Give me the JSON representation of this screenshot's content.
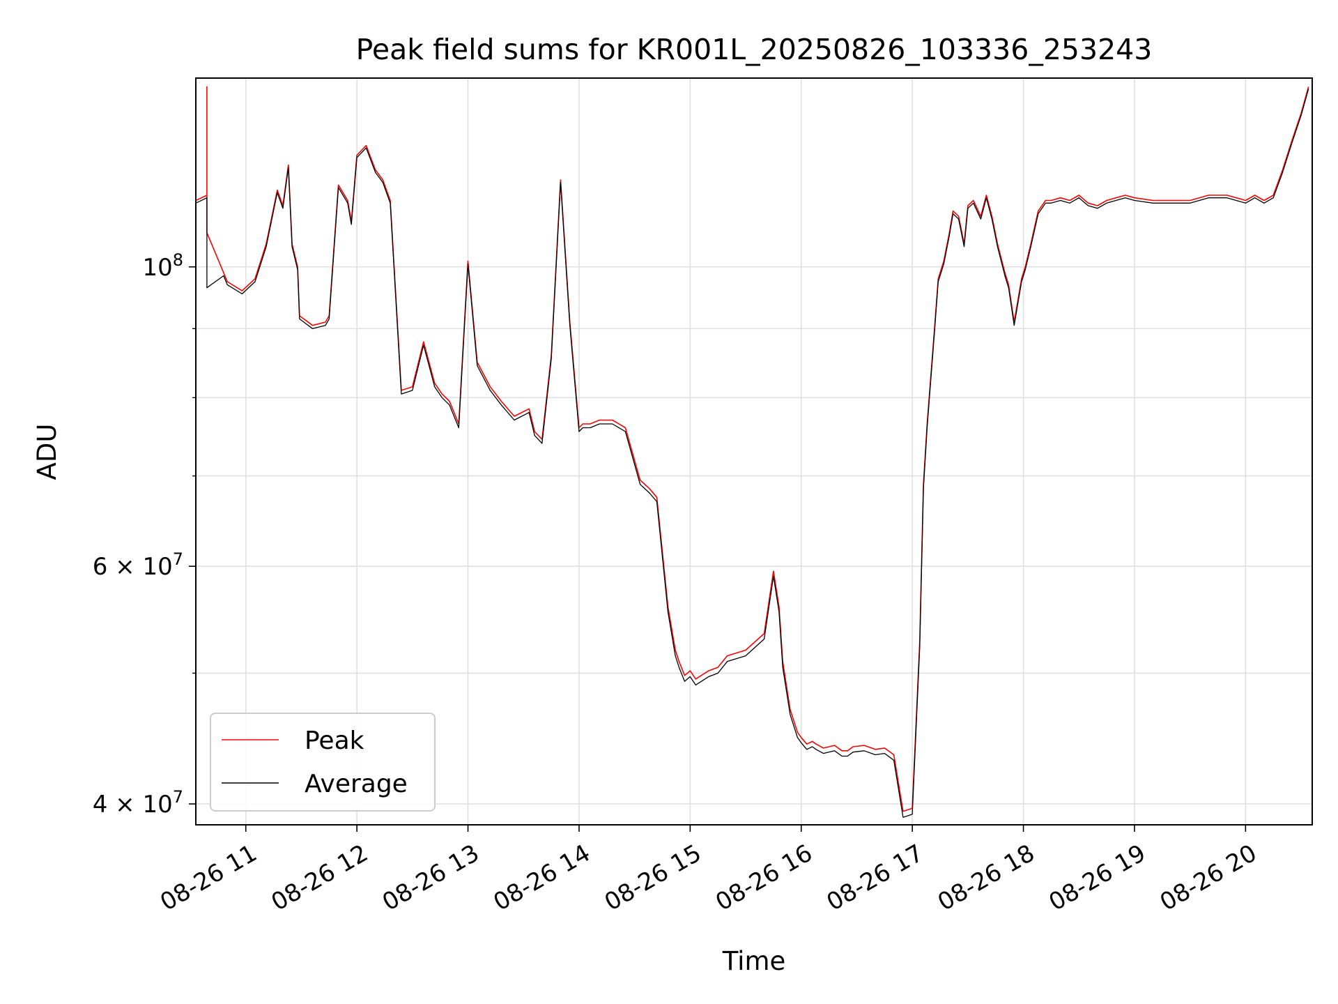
{
  "chart_data": {
    "type": "line",
    "title": "Peak field sums for KR001L_20250826_103336_253243",
    "xlabel": "Time",
    "ylabel": "ADU",
    "yscale": "log",
    "xlim": [
      "2025-08-26 10:33",
      "2025-08-26 20:36"
    ],
    "ylim": [
      38600000,
      138000000
    ],
    "x_ticks": [
      {
        "value": "2025-08-26 11:00",
        "label": "08-26 11"
      },
      {
        "value": "2025-08-26 12:00",
        "label": "08-26 12"
      },
      {
        "value": "2025-08-26 13:00",
        "label": "08-26 13"
      },
      {
        "value": "2025-08-26 14:00",
        "label": "08-26 14"
      },
      {
        "value": "2025-08-26 15:00",
        "label": "08-26 15"
      },
      {
        "value": "2025-08-26 16:00",
        "label": "08-26 16"
      },
      {
        "value": "2025-08-26 17:00",
        "label": "08-26 17"
      },
      {
        "value": "2025-08-26 18:00",
        "label": "08-26 18"
      },
      {
        "value": "2025-08-26 19:00",
        "label": "08-26 19"
      },
      {
        "value": "2025-08-26 20:00",
        "label": "08-26 20"
      }
    ],
    "y_major_ticks": [
      {
        "value": 40000000,
        "mantissa": "4",
        "exponent": "7"
      },
      {
        "value": 60000000,
        "mantissa": "6",
        "exponent": "7"
      },
      {
        "value": 100000000,
        "mantissa": "",
        "exponent": "8"
      }
    ],
    "y_minor_ticks": [
      50000000,
      70000000,
      80000000,
      90000000
    ],
    "grid": true,
    "legend_position": "lower-left",
    "series": [
      {
        "name": "Peak",
        "color": "#ff0000",
        "x": [
          "2025-08-26 10:33",
          "2025-08-26 10:39",
          "2025-08-26 10:39",
          "2025-08-26 10:39",
          "2025-08-26 10:48",
          "2025-08-26 10:50",
          "2025-08-26 10:58",
          "2025-08-26 11:05",
          "2025-08-26 11:11",
          "2025-08-26 11:17",
          "2025-08-26 11:20",
          "2025-08-26 11:23",
          "2025-08-26 11:25",
          "2025-08-26 11:28",
          "2025-08-26 11:29",
          "2025-08-26 11:36",
          "2025-08-26 11:43",
          "2025-08-26 11:45",
          "2025-08-26 11:50",
          "2025-08-26 11:55",
          "2025-08-26 11:57",
          "2025-08-26 12:00",
          "2025-08-26 12:05",
          "2025-08-26 12:10",
          "2025-08-26 12:14",
          "2025-08-26 12:18",
          "2025-08-26 12:24",
          "2025-08-26 12:30",
          "2025-08-26 12:36",
          "2025-08-26 12:42",
          "2025-08-26 12:46",
          "2025-08-26 12:50",
          "2025-08-26 12:55",
          "2025-08-26 13:00",
          "2025-08-26 13:05",
          "2025-08-26 13:12",
          "2025-08-26 13:18",
          "2025-08-26 13:25",
          "2025-08-26 13:33",
          "2025-08-26 13:36",
          "2025-08-26 13:40",
          "2025-08-26 13:45",
          "2025-08-26 13:50",
          "2025-08-26 13:55",
          "2025-08-26 14:00",
          "2025-08-26 14:02",
          "2025-08-26 14:06",
          "2025-08-26 14:11",
          "2025-08-26 14:18",
          "2025-08-26 14:25",
          "2025-08-26 14:33",
          "2025-08-26 14:38",
          "2025-08-26 14:42",
          "2025-08-26 14:48",
          "2025-08-26 14:52",
          "2025-08-26 14:54",
          "2025-08-26 14:57",
          "2025-08-26 15:00",
          "2025-08-26 15:03",
          "2025-08-26 15:06",
          "2025-08-26 15:10",
          "2025-08-26 15:15",
          "2025-08-26 15:20",
          "2025-08-26 15:30",
          "2025-08-26 15:40",
          "2025-08-26 15:45",
          "2025-08-26 15:48",
          "2025-08-26 15:50",
          "2025-08-26 15:54",
          "2025-08-26 15:58",
          "2025-08-26 16:00",
          "2025-08-26 16:03",
          "2025-08-26 16:06",
          "2025-08-26 16:08",
          "2025-08-26 16:12",
          "2025-08-26 16:18",
          "2025-08-26 16:22",
          "2025-08-26 16:25",
          "2025-08-26 16:28",
          "2025-08-26 16:34",
          "2025-08-26 16:40",
          "2025-08-26 16:45",
          "2025-08-26 16:50",
          "2025-08-26 16:55",
          "2025-08-26 17:00",
          "2025-08-26 17:04",
          "2025-08-26 17:06",
          "2025-08-26 17:08",
          "2025-08-26 17:10",
          "2025-08-26 17:12",
          "2025-08-26 17:14",
          "2025-08-26 17:17",
          "2025-08-26 17:20",
          "2025-08-26 17:22",
          "2025-08-26 17:25",
          "2025-08-26 17:28",
          "2025-08-26 17:30",
          "2025-08-26 17:33",
          "2025-08-26 17:37",
          "2025-08-26 17:40",
          "2025-08-26 17:43",
          "2025-08-26 17:46",
          "2025-08-26 17:50",
          "2025-08-26 17:52",
          "2025-08-26 17:55",
          "2025-08-26 17:59",
          "2025-08-26 18:01",
          "2025-08-26 18:04",
          "2025-08-26 18:08",
          "2025-08-26 18:12",
          "2025-08-26 18:15",
          "2025-08-26 18:20",
          "2025-08-26 18:25",
          "2025-08-26 18:30",
          "2025-08-26 18:35",
          "2025-08-26 18:40",
          "2025-08-26 18:45",
          "2025-08-26 18:50",
          "2025-08-26 18:55",
          "2025-08-26 19:00",
          "2025-08-26 19:10",
          "2025-08-26 19:20",
          "2025-08-26 19:30",
          "2025-08-26 19:40",
          "2025-08-26 19:50",
          "2025-08-26 20:00",
          "2025-08-26 20:05",
          "2025-08-26 20:10",
          "2025-08-26 20:15",
          "2025-08-26 20:20",
          "2025-08-26 20:25",
          "2025-08-26 20:30",
          "2025-08-26 20:34"
        ],
        "values": [
          112000000,
          113000000,
          136000000,
          106000000,
          99000000,
          97500000,
          96000000,
          98000000,
          104000000,
          114000000,
          111000000,
          119000000,
          104000000,
          100000000,
          92000000,
          90500000,
          91000000,
          92000000,
          115000000,
          112000000,
          108000000,
          121000000,
          123000000,
          118000000,
          116000000,
          112000000,
          81000000,
          81500000,
          88000000,
          82000000,
          80500000,
          79500000,
          76500000,
          101000000,
          85000000,
          81500000,
          79500000,
          77500000,
          78500000,
          75500000,
          74500000,
          86000000,
          116000000,
          91000000,
          76000000,
          76500000,
          76500000,
          77000000,
          77000000,
          76000000,
          69500000,
          68500000,
          67500000,
          56000000,
          52000000,
          51000000,
          49800000,
          50200000,
          49500000,
          49800000,
          50200000,
          50500000,
          51500000,
          52000000,
          53500000,
          59500000,
          56000000,
          51000000,
          47000000,
          45200000,
          44800000,
          44300000,
          44500000,
          44300000,
          44000000,
          44200000,
          43800000,
          43800000,
          44100000,
          44200000,
          43900000,
          44000000,
          43500000,
          39500000,
          39700000,
          52800000,
          69000000,
          76500000,
          83000000,
          90000000,
          98000000,
          101000000,
          106000000,
          110000000,
          109000000,
          104000000,
          111000000,
          112000000,
          109000000,
          113000000,
          109000000,
          104000000,
          99000000,
          97000000,
          91000000,
          98000000,
          100000000,
          104000000,
          110000000,
          112000000,
          112000000,
          112500000,
          112000000,
          113000000,
          111500000,
          111000000,
          112000000,
          112500000,
          113000000,
          112500000,
          112000000,
          112000000,
          112000000,
          113000000,
          113000000,
          112000000,
          113000000,
          112000000,
          113000000,
          118000000,
          124000000,
          130000000,
          136000000
        ]
      },
      {
        "name": "Average",
        "color": "#000000",
        "x": [
          "2025-08-26 10:33",
          "2025-08-26 10:39",
          "2025-08-26 10:39",
          "2025-08-26 10:39",
          "2025-08-26 10:48",
          "2025-08-26 10:50",
          "2025-08-26 10:58",
          "2025-08-26 11:05",
          "2025-08-26 11:11",
          "2025-08-26 11:17",
          "2025-08-26 11:20",
          "2025-08-26 11:23",
          "2025-08-26 11:25",
          "2025-08-26 11:28",
          "2025-08-26 11:29",
          "2025-08-26 11:36",
          "2025-08-26 11:43",
          "2025-08-26 11:45",
          "2025-08-26 11:50",
          "2025-08-26 11:55",
          "2025-08-26 11:57",
          "2025-08-26 12:00",
          "2025-08-26 12:05",
          "2025-08-26 12:10",
          "2025-08-26 12:14",
          "2025-08-26 12:18",
          "2025-08-26 12:24",
          "2025-08-26 12:30",
          "2025-08-26 12:36",
          "2025-08-26 12:42",
          "2025-08-26 12:46",
          "2025-08-26 12:50",
          "2025-08-26 12:55",
          "2025-08-26 13:00",
          "2025-08-26 13:05",
          "2025-08-26 13:12",
          "2025-08-26 13:18",
          "2025-08-26 13:25",
          "2025-08-26 13:33",
          "2025-08-26 13:36",
          "2025-08-26 13:40",
          "2025-08-26 13:45",
          "2025-08-26 13:50",
          "2025-08-26 13:55",
          "2025-08-26 14:00",
          "2025-08-26 14:02",
          "2025-08-26 14:06",
          "2025-08-26 14:11",
          "2025-08-26 14:18",
          "2025-08-26 14:25",
          "2025-08-26 14:33",
          "2025-08-26 14:38",
          "2025-08-26 14:42",
          "2025-08-26 14:48",
          "2025-08-26 14:52",
          "2025-08-26 14:54",
          "2025-08-26 14:57",
          "2025-08-26 15:00",
          "2025-08-26 15:03",
          "2025-08-26 15:06",
          "2025-08-26 15:10",
          "2025-08-26 15:15",
          "2025-08-26 15:20",
          "2025-08-26 15:30",
          "2025-08-26 15:40",
          "2025-08-26 15:45",
          "2025-08-26 15:48",
          "2025-08-26 15:50",
          "2025-08-26 15:54",
          "2025-08-26 15:58",
          "2025-08-26 16:00",
          "2025-08-26 16:03",
          "2025-08-26 16:06",
          "2025-08-26 16:08",
          "2025-08-26 16:12",
          "2025-08-26 16:18",
          "2025-08-26 16:22",
          "2025-08-26 16:25",
          "2025-08-26 16:28",
          "2025-08-26 16:34",
          "2025-08-26 16:40",
          "2025-08-26 16:45",
          "2025-08-26 16:50",
          "2025-08-26 16:55",
          "2025-08-26 17:00",
          "2025-08-26 17:04",
          "2025-08-26 17:06",
          "2025-08-26 17:08",
          "2025-08-26 17:10",
          "2025-08-26 17:12",
          "2025-08-26 17:14",
          "2025-08-26 17:17",
          "2025-08-26 17:20",
          "2025-08-26 17:22",
          "2025-08-26 17:25",
          "2025-08-26 17:28",
          "2025-08-26 17:30",
          "2025-08-26 17:33",
          "2025-08-26 17:37",
          "2025-08-26 17:40",
          "2025-08-26 17:43",
          "2025-08-26 17:46",
          "2025-08-26 17:50",
          "2025-08-26 17:52",
          "2025-08-26 17:55",
          "2025-08-26 17:59",
          "2025-08-26 18:01",
          "2025-08-26 18:04",
          "2025-08-26 18:08",
          "2025-08-26 18:12",
          "2025-08-26 18:15",
          "2025-08-26 18:20",
          "2025-08-26 18:25",
          "2025-08-26 18:30",
          "2025-08-26 18:35",
          "2025-08-26 18:40",
          "2025-08-26 18:45",
          "2025-08-26 18:50",
          "2025-08-26 18:55",
          "2025-08-26 19:00",
          "2025-08-26 19:10",
          "2025-08-26 19:20",
          "2025-08-26 19:30",
          "2025-08-26 19:40",
          "2025-08-26 19:50",
          "2025-08-26 20:00",
          "2025-08-26 20:05",
          "2025-08-26 20:10",
          "2025-08-26 20:15",
          "2025-08-26 20:20",
          "2025-08-26 20:25",
          "2025-08-26 20:30",
          "2025-08-26 20:34"
        ],
        "values": [
          111500000,
          112500000,
          104000000,
          96500000,
          98500000,
          97000000,
          95500000,
          97500000,
          103500000,
          113500000,
          110500000,
          118500000,
          103500000,
          99500000,
          91500000,
          90000000,
          90500000,
          91500000,
          114500000,
          111500000,
          107500000,
          120500000,
          122500000,
          117500000,
          115500000,
          111500000,
          80500000,
          81000000,
          87500000,
          81500000,
          80000000,
          79000000,
          76000000,
          100500000,
          84500000,
          81000000,
          79000000,
          77000000,
          78000000,
          75000000,
          74000000,
          85500000,
          115500000,
          90500000,
          75500000,
          76000000,
          76000000,
          76500000,
          76500000,
          75500000,
          69000000,
          68000000,
          67000000,
          55500000,
          51500000,
          50500000,
          49300000,
          49700000,
          49000000,
          49300000,
          49700000,
          50000000,
          51000000,
          51500000,
          53000000,
          59000000,
          55500000,
          50500000,
          46600000,
          44800000,
          44400000,
          43900000,
          44100000,
          43900000,
          43600000,
          43800000,
          43400000,
          43400000,
          43700000,
          43800000,
          43500000,
          43600000,
          43100000,
          39100000,
          39300000,
          52300000,
          68500000,
          76000000,
          82500000,
          89500000,
          97500000,
          100500000,
          105500000,
          109500000,
          108500000,
          103500000,
          110500000,
          111500000,
          108500000,
          112500000,
          108500000,
          103500000,
          98500000,
          96500000,
          90500000,
          97500000,
          99500000,
          103500000,
          109500000,
          111500000,
          111500000,
          112000000,
          111500000,
          112500000,
          111000000,
          110500000,
          111500000,
          112000000,
          112500000,
          112000000,
          111500000,
          111500000,
          111500000,
          112500000,
          112500000,
          111500000,
          112500000,
          111500000,
          112500000,
          117500000,
          123500000,
          129500000,
          135500000
        ]
      }
    ]
  }
}
